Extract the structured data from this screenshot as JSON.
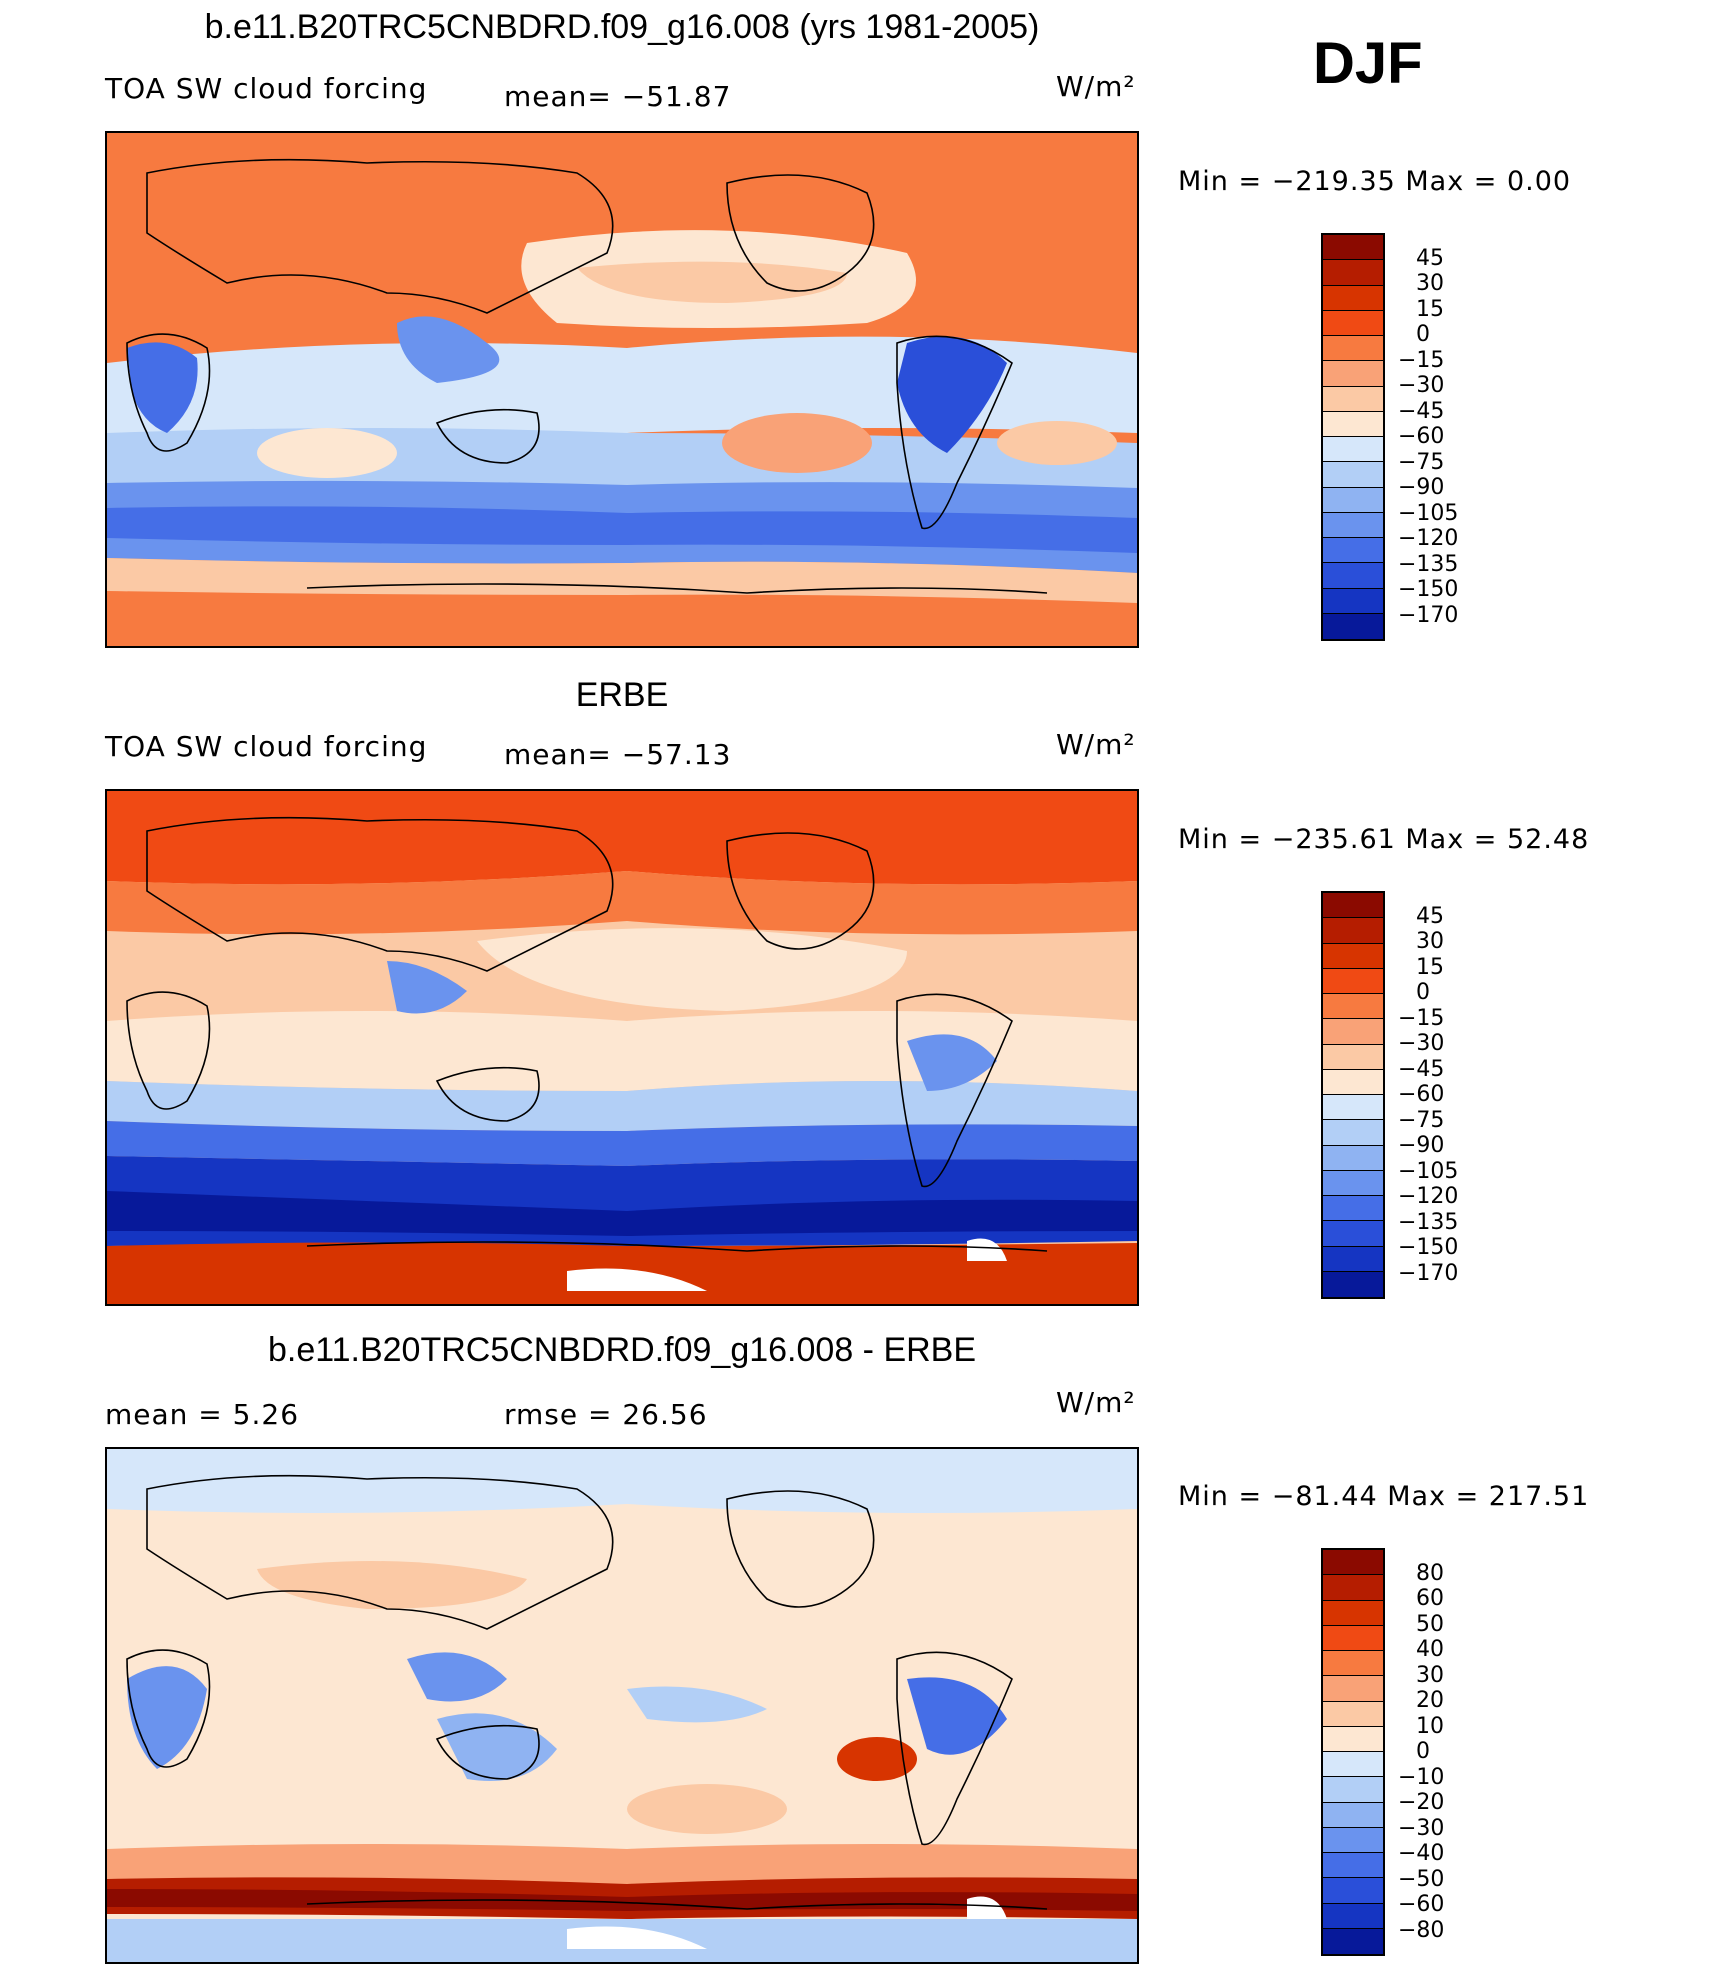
{
  "season": "DJF",
  "panels": [
    {
      "title": "b.e11.B20TRC5CNBDRD.f09_g16.008 (yrs 1981-2005)",
      "left_label": "TOA SW cloud forcing",
      "mid_label": "mean= −51.87",
      "units": "W/m²",
      "minmax": "Min  =  −219.35  Max  =     0.00",
      "colorbar": {
        "labels": [
          "45",
          "30",
          "15",
          "0",
          "−15",
          "−30",
          "−45",
          "−60",
          "−75",
          "−90",
          "−105",
          "−120",
          "−135",
          "−150",
          "−170"
        ],
        "colors": [
          "#8b0a00",
          "#b51d00",
          "#d73400",
          "#f04a14",
          "#f77a40",
          "#f9a277",
          "#fbc9a5",
          "#fde7d2",
          "#d6e7fa",
          "#b2cff6",
          "#8fb3f2",
          "#6a93ee",
          "#456ee7",
          "#2a4fd9",
          "#1535c2",
          "#07199a"
        ]
      }
    },
    {
      "title": "ERBE",
      "left_label": "TOA SW cloud forcing",
      "mid_label": "mean= −57.13",
      "units": "W/m²",
      "minmax": "Min  =  −235.61  Max  =    52.48",
      "colorbar": {
        "labels": [
          "45",
          "30",
          "15",
          "0",
          "−15",
          "−30",
          "−45",
          "−60",
          "−75",
          "−90",
          "−105",
          "−120",
          "−135",
          "−150",
          "−170"
        ],
        "colors": [
          "#8b0a00",
          "#b51d00",
          "#d73400",
          "#f04a14",
          "#f77a40",
          "#f9a277",
          "#fbc9a5",
          "#fde7d2",
          "#d6e7fa",
          "#b2cff6",
          "#8fb3f2",
          "#6a93ee",
          "#456ee7",
          "#2a4fd9",
          "#1535c2",
          "#07199a"
        ]
      }
    },
    {
      "title": "b.e11.B20TRC5CNBDRD.f09_g16.008 - ERBE",
      "left_label": "mean =     5.26",
      "mid_label": "rmse =   26.56",
      "units": "W/m²",
      "minmax": "Min  =  −81.44  Max  =  217.51",
      "colorbar": {
        "labels": [
          "80",
          "60",
          "50",
          "40",
          "30",
          "20",
          "10",
          "0",
          "−10",
          "−20",
          "−30",
          "−40",
          "−50",
          "−60",
          "−80"
        ],
        "colors": [
          "#8b0a00",
          "#b51d00",
          "#d73400",
          "#f04a14",
          "#f77a40",
          "#f9a277",
          "#fbc9a5",
          "#fde7d2",
          "#d6e7fa",
          "#b2cff6",
          "#8fb3f2",
          "#6a93ee",
          "#456ee7",
          "#2a4fd9",
          "#1535c2",
          "#07199a"
        ]
      }
    }
  ]
}
